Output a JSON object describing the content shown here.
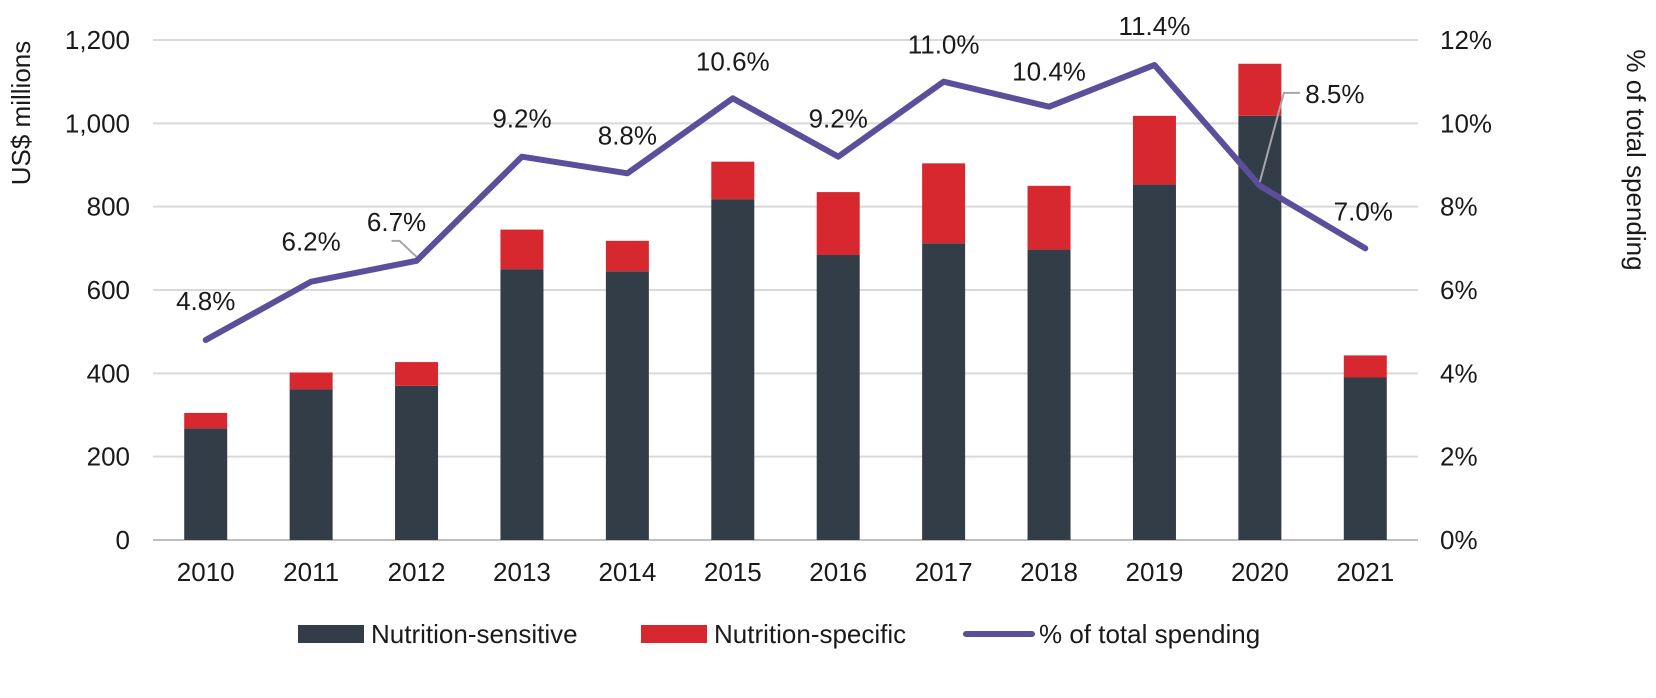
{
  "chart_data": {
    "type": "bar",
    "stacked": true,
    "categories": [
      "2010",
      "2011",
      "2012",
      "2013",
      "2014",
      "2015",
      "2016",
      "2017",
      "2018",
      "2019",
      "2020",
      "2021"
    ],
    "series": [
      {
        "name": "Nutrition-sensitive",
        "type": "bar",
        "axis": "left",
        "color": "#333d47",
        "values": [
          268,
          362,
          370,
          650,
          645,
          818,
          684,
          712,
          697,
          853,
          1018,
          390
        ]
      },
      {
        "name": "Nutrition-specific",
        "type": "bar",
        "axis": "left",
        "color": "#d7282f",
        "values": [
          37,
          40,
          57,
          95,
          73,
          90,
          151,
          192,
          153,
          165,
          125,
          53
        ]
      },
      {
        "name": "% of total spending",
        "type": "line",
        "axis": "right",
        "color": "#5b4f9b",
        "values": [
          4.8,
          6.2,
          6.7,
          9.2,
          8.8,
          10.6,
          9.2,
          11.0,
          10.4,
          11.4,
          8.5,
          7.0
        ],
        "labels": [
          "4.8%",
          "6.2%",
          "6.7%",
          "9.2%",
          "8.8%",
          "10.6%",
          "9.2%",
          "11.0%",
          "10.4%",
          "11.4%",
          "8.5%",
          "7.0%"
        ]
      }
    ],
    "ylabel": "US$ millions",
    "y2label": "% of total spending",
    "ylim": [
      0,
      1200
    ],
    "y2lim": [
      0,
      12
    ],
    "yticks": [
      "0",
      "200",
      "400",
      "600",
      "800",
      "1,000",
      "1,200"
    ],
    "y2ticks": [
      "0%",
      "2%",
      "4%",
      "6%",
      "8%",
      "10%",
      "12%"
    ],
    "grid": true,
    "legend_position": "bottom"
  }
}
